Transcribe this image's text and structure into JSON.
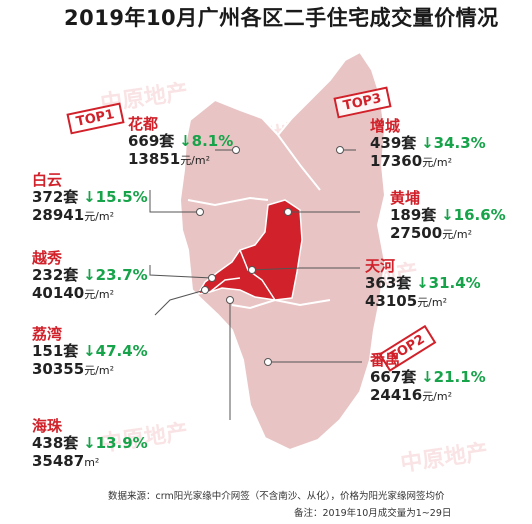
{
  "title": "2019年10月广州各区二手住宅成交量价情况",
  "watermark": "中原地产",
  "colors": {
    "district_red": "#d1212a",
    "change_green": "#17a34a",
    "map_pink": "#e8c4c4"
  },
  "districts": {
    "huadu": {
      "name": "花都",
      "volume": "669套",
      "change": "↓8.1%",
      "price": "13851",
      "price_unit": "元/m²",
      "top": "TOP1"
    },
    "zengcheng": {
      "name": "增城",
      "volume": "439套",
      "change": "↓34.3%",
      "price": "17360",
      "price_unit": "元/m²",
      "top": "TOP3"
    },
    "baiyun": {
      "name": "白云",
      "volume": "372套",
      "change": "↓15.5%",
      "price": "28941",
      "price_unit": "元/m²"
    },
    "huangpu": {
      "name": "黄埔",
      "volume": "189套",
      "change": "↓16.6%",
      "price": "27500",
      "price_unit": "元/m²"
    },
    "yuexiu": {
      "name": "越秀",
      "volume": "232套",
      "change": "↓23.7%",
      "price": "40140",
      "price_unit": "元/m²"
    },
    "tianhe": {
      "name": "天河",
      "volume": "363套",
      "change": "↓31.4%",
      "price": "43105",
      "price_unit": "元/m²"
    },
    "liwan": {
      "name": "荔湾",
      "volume": "151套",
      "change": "↓47.4%",
      "price": "30355",
      "price_unit": "元/m²"
    },
    "panyu": {
      "name": "番禺",
      "volume": "667套",
      "change": "↓21.1%",
      "price": "24416",
      "price_unit": "元/m²",
      "top": "TOP2"
    },
    "haizhu": {
      "name": "海珠",
      "volume": "438套",
      "change": "↓13.9%",
      "price": "35487",
      "price_unit": "m²"
    }
  },
  "footer": {
    "source": "数据来源：crm阳光家缘中介网签（不含南沙、从化），价格为阳光家缘网签均价",
    "note": "备注：2019年10月成交量为1~29日"
  }
}
